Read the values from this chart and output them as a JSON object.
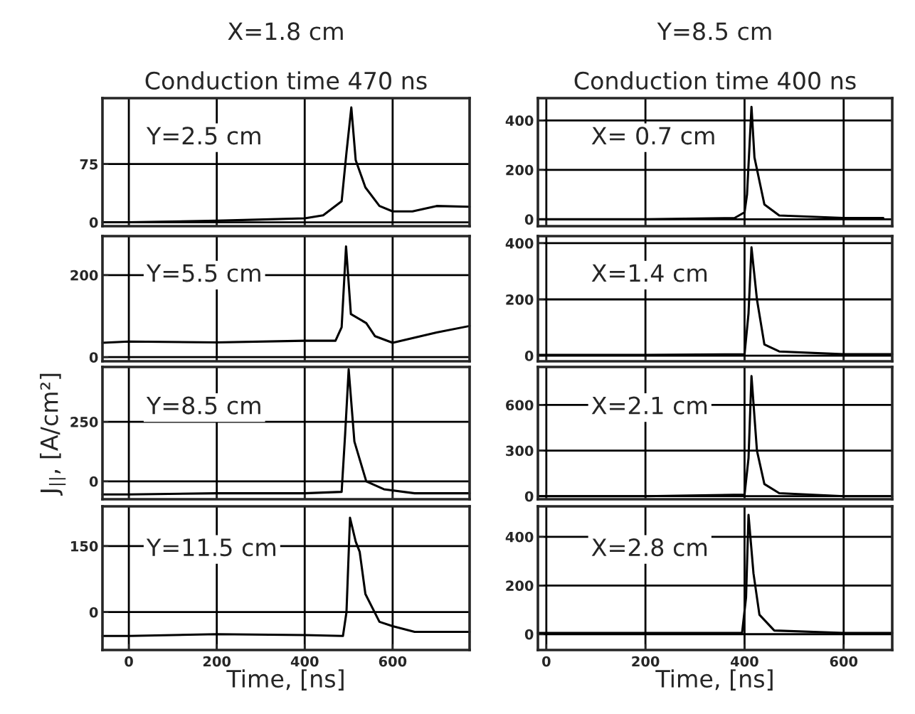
{
  "chart_data": [
    {
      "type": "line",
      "title": "X=1.8 cm",
      "subtitle": "Conduction time 470 ns",
      "annotations": [
        "Y=2.5 cm"
      ],
      "xlim": [
        -60,
        775
      ],
      "xticks": [
        0,
        200,
        400,
        600
      ],
      "ylim": [
        -5,
        160
      ],
      "yticks": [
        0,
        75
      ],
      "grid": true,
      "tick_labels": "y",
      "color": "#000000",
      "x": [
        -60,
        0,
        200,
        400,
        442,
        484,
        495,
        506,
        516,
        538,
        570,
        600,
        645,
        700,
        775
      ],
      "values": [
        0,
        0,
        2,
        5,
        9,
        27,
        90,
        148,
        80,
        45,
        21,
        14,
        14,
        21,
        20
      ]
    },
    {
      "type": "line",
      "annotations": [
        "Y=5.5 cm"
      ],
      "xlim": [
        -60,
        775
      ],
      "xticks": [
        0,
        200,
        400,
        600
      ],
      "ylim": [
        -10,
        295
      ],
      "yticks": [
        0,
        200
      ],
      "grid": true,
      "tick_labels": "y",
      "color": "#000000",
      "x": [
        -60,
        0,
        200,
        400,
        470,
        484,
        494,
        505,
        540,
        560,
        600,
        700,
        775
      ],
      "values": [
        35,
        38,
        36,
        40,
        40,
        73,
        270,
        105,
        83,
        51,
        35,
        60,
        76
      ]
    },
    {
      "type": "line",
      "annotations": [
        "Y=8.5 cm"
      ],
      "ylabel": "J$_{||}$, [A/cm²]",
      "xlim": [
        -60,
        775
      ],
      "xticks": [
        0,
        200,
        400,
        600
      ],
      "ylim": [
        -75,
        480
      ],
      "yticks": [
        0,
        250
      ],
      "grid": true,
      "tick_labels": "y",
      "color": "#000000",
      "x": [
        -60,
        0,
        200,
        400,
        484,
        492,
        500,
        513,
        540,
        580,
        650,
        775
      ],
      "values": [
        -55,
        -55,
        -50,
        -50,
        -44,
        200,
        470,
        167,
        0,
        -33,
        -50,
        -50
      ]
    },
    {
      "type": "line",
      "annotations": [
        "Y=11.5 cm"
      ],
      "xlabel": "Time, [ns]",
      "xlim": [
        -60,
        775
      ],
      "xticks": [
        0,
        200,
        400,
        600
      ],
      "ylim": [
        -86,
        240
      ],
      "yticks": [
        0,
        150
      ],
      "grid": true,
      "color": "#000000",
      "x": [
        -60,
        0,
        200,
        400,
        487,
        495,
        503,
        516,
        525,
        538,
        570,
        600,
        650,
        775
      ],
      "values": [
        -54,
        -54,
        -50,
        -52,
        -54,
        0,
        214,
        160,
        137,
        41,
        -22,
        -32,
        -45,
        -45
      ]
    },
    {
      "type": "line",
      "title": "Y=8.5 cm",
      "subtitle": "Conduction time 400 ns",
      "annotations": [
        "X= 0.7 cm"
      ],
      "xlim": [
        -17,
        698
      ],
      "xticks": [
        0,
        200,
        400,
        600
      ],
      "ylim": [
        -28,
        490
      ],
      "yticks": [
        0,
        200,
        400
      ],
      "grid": true,
      "tick_labels": "y",
      "color": "#000000",
      "x": [
        -17,
        0,
        200,
        380,
        400,
        405,
        414,
        420,
        440,
        470,
        600,
        680
      ],
      "values": [
        0,
        0,
        0,
        5,
        28,
        100,
        455,
        250,
        60,
        15,
        5,
        5
      ]
    },
    {
      "type": "line",
      "annotations": [
        "X=1.4 cm"
      ],
      "xlim": [
        -17,
        698
      ],
      "xticks": [
        0,
        200,
        400,
        600
      ],
      "ylim": [
        -20,
        425
      ],
      "yticks": [
        0,
        200,
        400
      ],
      "grid": true,
      "tick_labels": "y",
      "color": "#000000",
      "x": [
        -17,
        0,
        200,
        400,
        408,
        414,
        425,
        440,
        470,
        600,
        698
      ],
      "values": [
        3,
        3,
        3,
        5,
        150,
        385,
        200,
        40,
        15,
        5,
        5
      ]
    },
    {
      "type": "line",
      "annotations": [
        "X=2.1 cm"
      ],
      "xlim": [
        -17,
        698
      ],
      "xticks": [
        0,
        200,
        400,
        600
      ],
      "ylim": [
        -20,
        850
      ],
      "yticks": [
        0,
        300,
        600
      ],
      "grid": true,
      "tick_labels": "y",
      "color": "#000000",
      "x": [
        -17,
        0,
        200,
        400,
        408,
        414,
        425,
        440,
        470,
        600,
        698
      ],
      "values": [
        0,
        0,
        0,
        10,
        250,
        790,
        300,
        80,
        20,
        0,
        0
      ]
    },
    {
      "type": "line",
      "annotations": [
        "X=2.8 cm"
      ],
      "xlabel": "Time, [ns]",
      "xlim": [
        -17,
        698
      ],
      "xticks": [
        0,
        200,
        400,
        600
      ],
      "ylim": [
        -65,
        525
      ],
      "yticks": [
        0,
        200,
        400
      ],
      "grid": true,
      "color": "#000000",
      "x": [
        -17,
        0,
        200,
        395,
        403,
        408,
        418,
        430,
        460,
        600,
        698
      ],
      "values": [
        5,
        5,
        5,
        5,
        150,
        490,
        250,
        80,
        15,
        5,
        5
      ]
    }
  ]
}
